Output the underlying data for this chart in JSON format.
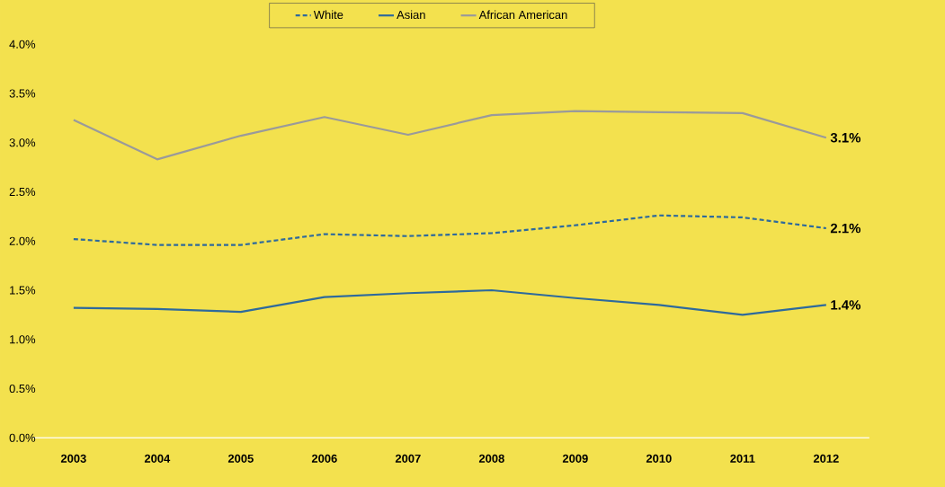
{
  "chart_data": {
    "type": "line",
    "categories": [
      "2003",
      "2004",
      "2005",
      "2006",
      "2007",
      "2008",
      "2009",
      "2010",
      "2011",
      "2012"
    ],
    "series": [
      {
        "name": "White",
        "color": "#2e6a9c",
        "line_style": "dashed",
        "values": [
          2.02,
          1.96,
          1.96,
          2.07,
          2.05,
          2.08,
          2.16,
          2.26,
          2.24,
          2.13
        ],
        "value_labels": [
          null,
          null,
          null,
          null,
          null,
          null,
          null,
          null,
          null,
          "2.1%"
        ]
      },
      {
        "name": "Asian",
        "color": "#2e6a9c",
        "line_style": "solid",
        "values": [
          1.32,
          1.31,
          1.28,
          1.43,
          1.47,
          1.5,
          1.42,
          1.35,
          1.25,
          1.35
        ],
        "value_labels": [
          null,
          null,
          null,
          null,
          null,
          null,
          null,
          null,
          null,
          "1.4%"
        ]
      },
      {
        "name": "African American",
        "color": "#9a9a9a",
        "line_style": "solid",
        "values": [
          3.23,
          2.83,
          3.07,
          3.26,
          3.08,
          3.28,
          3.32,
          3.31,
          3.3,
          3.05
        ],
        "value_labels": [
          null,
          null,
          null,
          null,
          null,
          null,
          null,
          null,
          null,
          "3.1%"
        ]
      }
    ],
    "ylim": [
      0,
      4
    ],
    "yticks": [
      {
        "value": 0,
        "label": "0.0%"
      },
      {
        "value": 0.5,
        "label": "0.5%"
      },
      {
        "value": 1,
        "label": "1.0%"
      },
      {
        "value": 1.5,
        "label": "1.5%"
      },
      {
        "value": 2,
        "label": "2.0%"
      },
      {
        "value": 2.5,
        "label": "2.5%"
      },
      {
        "value": 3,
        "label": "3.0%"
      },
      {
        "value": 3.5,
        "label": "3.5%"
      },
      {
        "value": 4,
        "label": "4.0%"
      }
    ],
    "grid": false,
    "legend": "top"
  }
}
